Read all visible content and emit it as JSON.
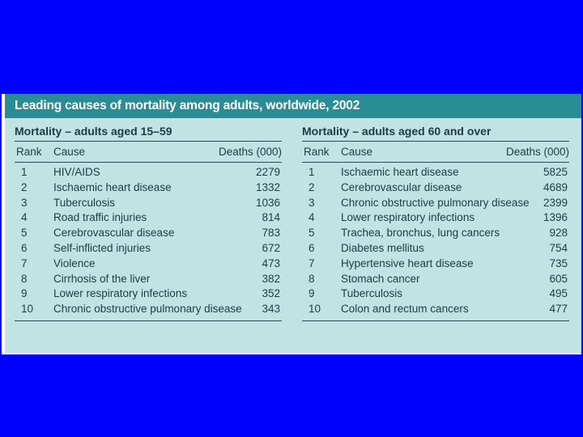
{
  "title": "Leading causes of mortality among adults, worldwide, 2002",
  "colors": {
    "background": "#0000ff",
    "header": "#2a8c94",
    "table_bg": "#c2e3e3"
  },
  "tables": [
    {
      "title": "Mortality – adults aged 15–59",
      "columns": {
        "rank": "Rank",
        "cause": "Cause",
        "deaths": "Deaths (000)"
      },
      "rows": [
        {
          "rank": "1",
          "cause": "HIV/AIDS",
          "deaths": "2279"
        },
        {
          "rank": "2",
          "cause": "Ischaemic heart disease",
          "deaths": "1332"
        },
        {
          "rank": "3",
          "cause": "Tuberculosis",
          "deaths": "1036"
        },
        {
          "rank": "4",
          "cause": "Road traffic injuries",
          "deaths": "814"
        },
        {
          "rank": "5",
          "cause": "Cerebrovascular disease",
          "deaths": "783"
        },
        {
          "rank": "6",
          "cause": "Self-inflicted injuries",
          "deaths": "672"
        },
        {
          "rank": "7",
          "cause": "Violence",
          "deaths": "473"
        },
        {
          "rank": "8",
          "cause": "Cirrhosis of the liver",
          "deaths": "382"
        },
        {
          "rank": "9",
          "cause": "Lower respiratory infections",
          "deaths": "352"
        },
        {
          "rank": "10",
          "cause": "Chronic obstructive pulmonary disease",
          "deaths": "343"
        }
      ]
    },
    {
      "title": "Mortality – adults aged 60 and over",
      "columns": {
        "rank": "Rank",
        "cause": "Cause",
        "deaths": "Deaths (000)"
      },
      "rows": [
        {
          "rank": "1",
          "cause": "Ischaemic heart disease",
          "deaths": "5825"
        },
        {
          "rank": "2",
          "cause": "Cerebrovascular disease",
          "deaths": "4689"
        },
        {
          "rank": "3",
          "cause": "Chronic obstructive pulmonary disease",
          "deaths": "2399"
        },
        {
          "rank": "4",
          "cause": "Lower respiratory infections",
          "deaths": "1396"
        },
        {
          "rank": "5",
          "cause": "Trachea, bronchus, lung cancers",
          "deaths": "928"
        },
        {
          "rank": "6",
          "cause": "Diabetes mellitus",
          "deaths": "754"
        },
        {
          "rank": "7",
          "cause": "Hypertensive heart disease",
          "deaths": "735"
        },
        {
          "rank": "8",
          "cause": "Stomach cancer",
          "deaths": "605"
        },
        {
          "rank": "9",
          "cause": "Tuberculosis",
          "deaths": "495"
        },
        {
          "rank": "10",
          "cause": "Colon and rectum cancers",
          "deaths": "477"
        }
      ]
    }
  ]
}
